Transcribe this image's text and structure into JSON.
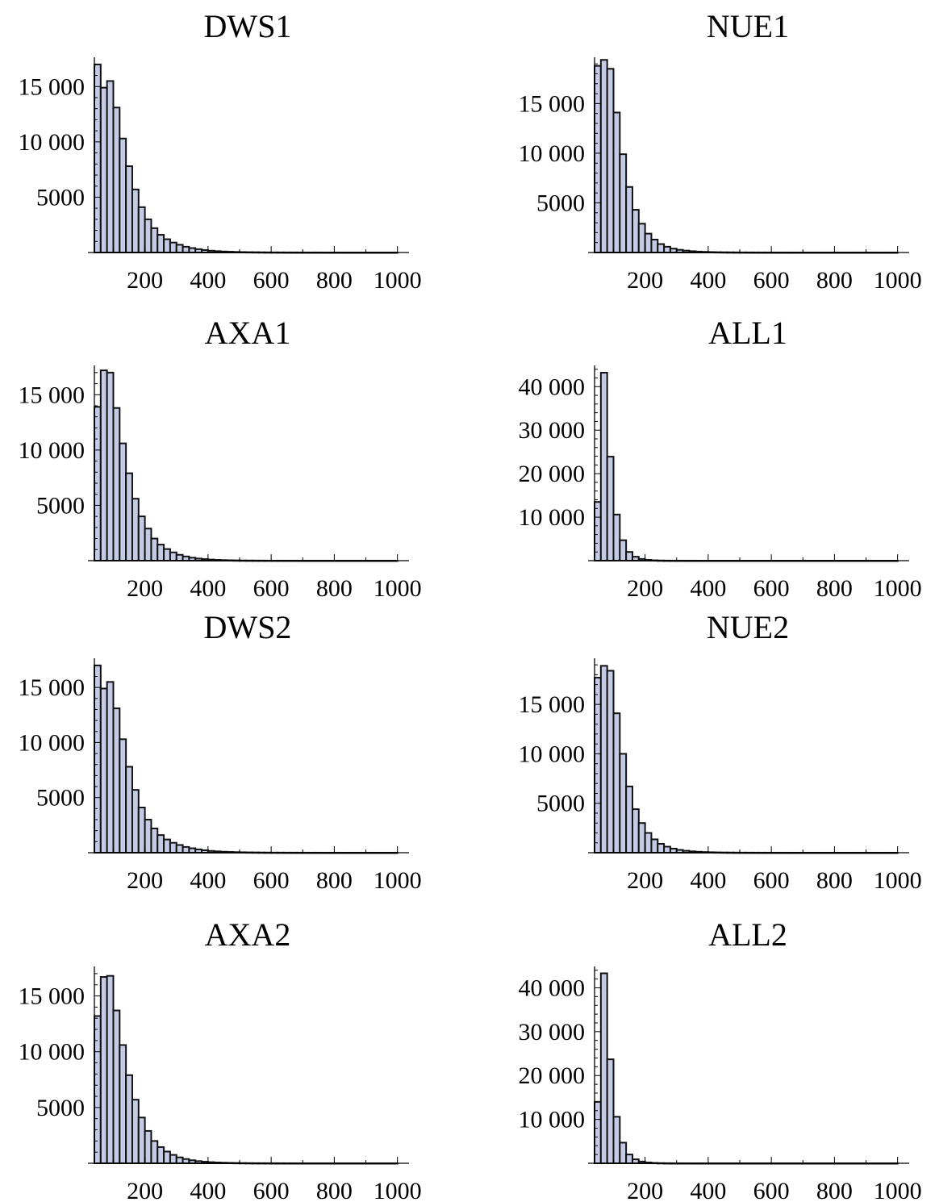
{
  "chart_data": [
    {
      "type": "bar",
      "title": "DWS1",
      "x_ticks": [
        "200",
        "400",
        "600",
        "800",
        "1000"
      ],
      "y_ticks": [
        "5000",
        "10 000",
        "15 000"
      ],
      "xlim": [
        40,
        1000
      ],
      "ylim": [
        0,
        17500
      ],
      "bin_width": 20,
      "bin_start": 40,
      "values": [
        17000,
        14900,
        15500,
        13100,
        10300,
        7800,
        5700,
        4100,
        3000,
        2200,
        1600,
        1200,
        900,
        700,
        520,
        400,
        300,
        220,
        160,
        120,
        90,
        70,
        50,
        40,
        30,
        25,
        20,
        15,
        12,
        10,
        8,
        6,
        5,
        4,
        3,
        3,
        2,
        2,
        2,
        1,
        1,
        1,
        1,
        1,
        1,
        1,
        1,
        1
      ]
    },
    {
      "type": "bar",
      "title": "NUE1",
      "x_ticks": [
        "200",
        "400",
        "600",
        "800",
        "1000"
      ],
      "y_ticks": [
        "5000",
        "10 000",
        "15 000"
      ],
      "xlim": [
        40,
        1000
      ],
      "ylim": [
        0,
        19500
      ],
      "bin_width": 20,
      "bin_start": 40,
      "values": [
        18800,
        19400,
        18500,
        14100,
        9900,
        6600,
        4300,
        2900,
        1900,
        1300,
        850,
        580,
        390,
        270,
        190,
        130,
        90,
        65,
        45,
        32,
        24,
        18,
        13,
        10,
        8,
        6,
        5,
        4,
        3,
        2,
        2,
        1,
        1,
        1,
        1,
        1,
        1,
        1,
        1,
        1,
        1,
        1,
        1,
        1,
        1,
        1,
        1,
        1
      ]
    },
    {
      "type": "bar",
      "title": "AXA1",
      "x_ticks": [
        "200",
        "400",
        "600",
        "800",
        "1000"
      ],
      "y_ticks": [
        "5000",
        "10 000",
        "15 000"
      ],
      "xlim": [
        40,
        1000
      ],
      "ylim": [
        0,
        17500
      ],
      "bin_width": 20,
      "bin_start": 40,
      "values": [
        13900,
        17200,
        17000,
        13800,
        10600,
        7900,
        5600,
        4000,
        2900,
        2000,
        1450,
        1050,
        750,
        530,
        380,
        270,
        190,
        140,
        100,
        70,
        50,
        36,
        26,
        19,
        14,
        10,
        8,
        6,
        4,
        3,
        2,
        2,
        1,
        1,
        1,
        1,
        1,
        1,
        1,
        1,
        1,
        1,
        1,
        1,
        1,
        1,
        1,
        1
      ]
    },
    {
      "type": "bar",
      "title": "ALL1",
      "x_ticks": [
        "200",
        "400",
        "600",
        "800",
        "1000"
      ],
      "y_ticks": [
        "10 000",
        "20 000",
        "30 000",
        "40 000"
      ],
      "xlim": [
        40,
        1000
      ],
      "ylim": [
        0,
        44500
      ],
      "bin_width": 20,
      "bin_start": 40,
      "values": [
        13500,
        43200,
        23900,
        10600,
        4700,
        2000,
        900,
        400,
        180,
        80,
        40,
        20,
        10,
        5,
        3,
        2,
        1,
        1,
        1,
        1,
        1,
        1,
        1,
        1,
        1,
        1,
        1,
        1,
        1,
        1,
        1,
        1,
        1,
        1,
        1,
        1,
        1,
        1,
        1,
        1,
        1,
        1,
        1,
        1,
        1,
        1,
        1,
        1
      ]
    },
    {
      "type": "bar",
      "title": "DWS2",
      "x_ticks": [
        "200",
        "400",
        "600",
        "800",
        "1000"
      ],
      "y_ticks": [
        "5000",
        "10 000",
        "15 000"
      ],
      "xlim": [
        40,
        1000
      ],
      "ylim": [
        0,
        17500
      ],
      "bin_width": 20,
      "bin_start": 40,
      "values": [
        17000,
        14900,
        15500,
        13100,
        10300,
        7800,
        5700,
        4100,
        3000,
        2200,
        1600,
        1200,
        900,
        700,
        520,
        400,
        300,
        220,
        160,
        120,
        90,
        70,
        50,
        40,
        30,
        25,
        20,
        15,
        12,
        10,
        8,
        6,
        5,
        4,
        3,
        3,
        2,
        2,
        2,
        1,
        1,
        1,
        1,
        1,
        1,
        1,
        1,
        1
      ]
    },
    {
      "type": "bar",
      "title": "NUE2",
      "x_ticks": [
        "200",
        "400",
        "600",
        "800",
        "1000"
      ],
      "y_ticks": [
        "5000",
        "10 000",
        "15 000"
      ],
      "xlim": [
        40,
        1000
      ],
      "ylim": [
        0,
        19500
      ],
      "bin_width": 20,
      "bin_start": 40,
      "values": [
        17700,
        18900,
        18400,
        14100,
        10000,
        6700,
        4400,
        3000,
        2000,
        1350,
        900,
        610,
        410,
        280,
        195,
        135,
        95,
        67,
        47,
        33,
        24,
        18,
        13,
        10,
        8,
        6,
        5,
        4,
        3,
        2,
        2,
        1,
        1,
        1,
        1,
        1,
        1,
        1,
        1,
        1,
        1,
        1,
        1,
        1,
        1,
        1,
        1,
        1
      ]
    },
    {
      "type": "bar",
      "title": "AXA2",
      "x_ticks": [
        "200",
        "400",
        "600",
        "800",
        "1000"
      ],
      "y_ticks": [
        "5000",
        "10 000",
        "15 000"
      ],
      "xlim": [
        40,
        1000
      ],
      "ylim": [
        0,
        17500
      ],
      "bin_width": 20,
      "bin_start": 40,
      "values": [
        13200,
        16700,
        16800,
        13700,
        10600,
        7900,
        5700,
        4100,
        2900,
        2000,
        1450,
        1050,
        750,
        530,
        380,
        270,
        190,
        140,
        100,
        70,
        50,
        36,
        26,
        19,
        14,
        10,
        8,
        6,
        4,
        3,
        2,
        2,
        1,
        1,
        1,
        1,
        1,
        1,
        1,
        1,
        1,
        1,
        1,
        1,
        1,
        1,
        1,
        1
      ]
    },
    {
      "type": "bar",
      "title": "ALL2",
      "x_ticks": [
        "200",
        "400",
        "600",
        "800",
        "1000"
      ],
      "y_ticks": [
        "10 000",
        "20 000",
        "30 000",
        "40 000"
      ],
      "xlim": [
        40,
        1000
      ],
      "ylim": [
        0,
        44500
      ],
      "bin_width": 20,
      "bin_start": 40,
      "values": [
        14000,
        43300,
        23700,
        10600,
        4700,
        2000,
        900,
        400,
        180,
        80,
        40,
        20,
        10,
        5,
        3,
        2,
        1,
        1,
        1,
        1,
        1,
        1,
        1,
        1,
        1,
        1,
        1,
        1,
        1,
        1,
        1,
        1,
        1,
        1,
        1,
        1,
        1,
        1,
        1,
        1,
        1,
        1,
        1,
        1,
        1,
        1,
        1,
        1
      ]
    }
  ],
  "colors": {
    "bar_fill": "#c5cae5",
    "bar_stroke": "#111111"
  }
}
